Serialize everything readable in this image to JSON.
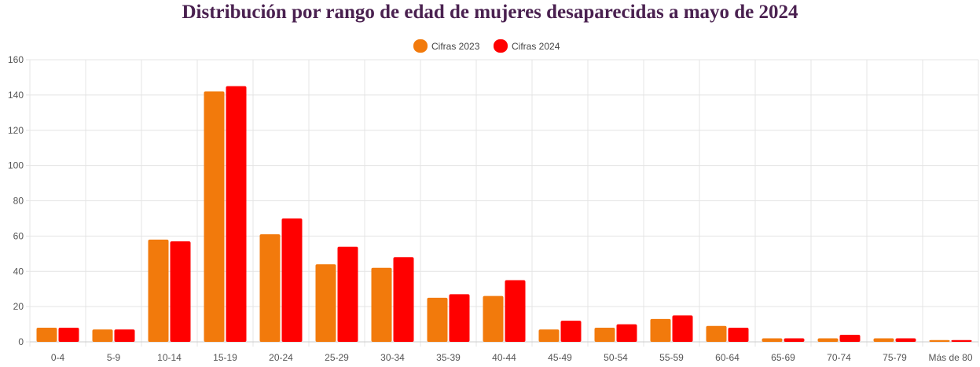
{
  "chart_data": {
    "type": "bar",
    "title": "Distribución por rango de edad de mujeres desaparecidas a mayo de 2024",
    "xlabel": "",
    "ylabel": "",
    "ylim": [
      0,
      160
    ],
    "yticks": [
      0,
      20,
      40,
      60,
      80,
      100,
      120,
      140,
      160
    ],
    "grid": true,
    "legend_position": "top-center",
    "categories": [
      "0-4",
      "5-9",
      "10-14",
      "15-19",
      "20-24",
      "25-29",
      "30-34",
      "35-39",
      "40-44",
      "45-49",
      "50-54",
      "55-59",
      "60-64",
      "65-69",
      "70-74",
      "75-79",
      "Más de 80"
    ],
    "series": [
      {
        "name": "Cifras 2023",
        "color": "#f27a0c",
        "values": [
          8,
          7,
          58,
          142,
          61,
          44,
          42,
          25,
          26,
          7,
          8,
          13,
          9,
          2,
          2,
          2,
          1
        ]
      },
      {
        "name": "Cifras 2024",
        "color": "#ff0000",
        "values": [
          8,
          7,
          57,
          145,
          70,
          54,
          48,
          27,
          35,
          12,
          10,
          15,
          8,
          2,
          4,
          2,
          1
        ]
      }
    ]
  }
}
